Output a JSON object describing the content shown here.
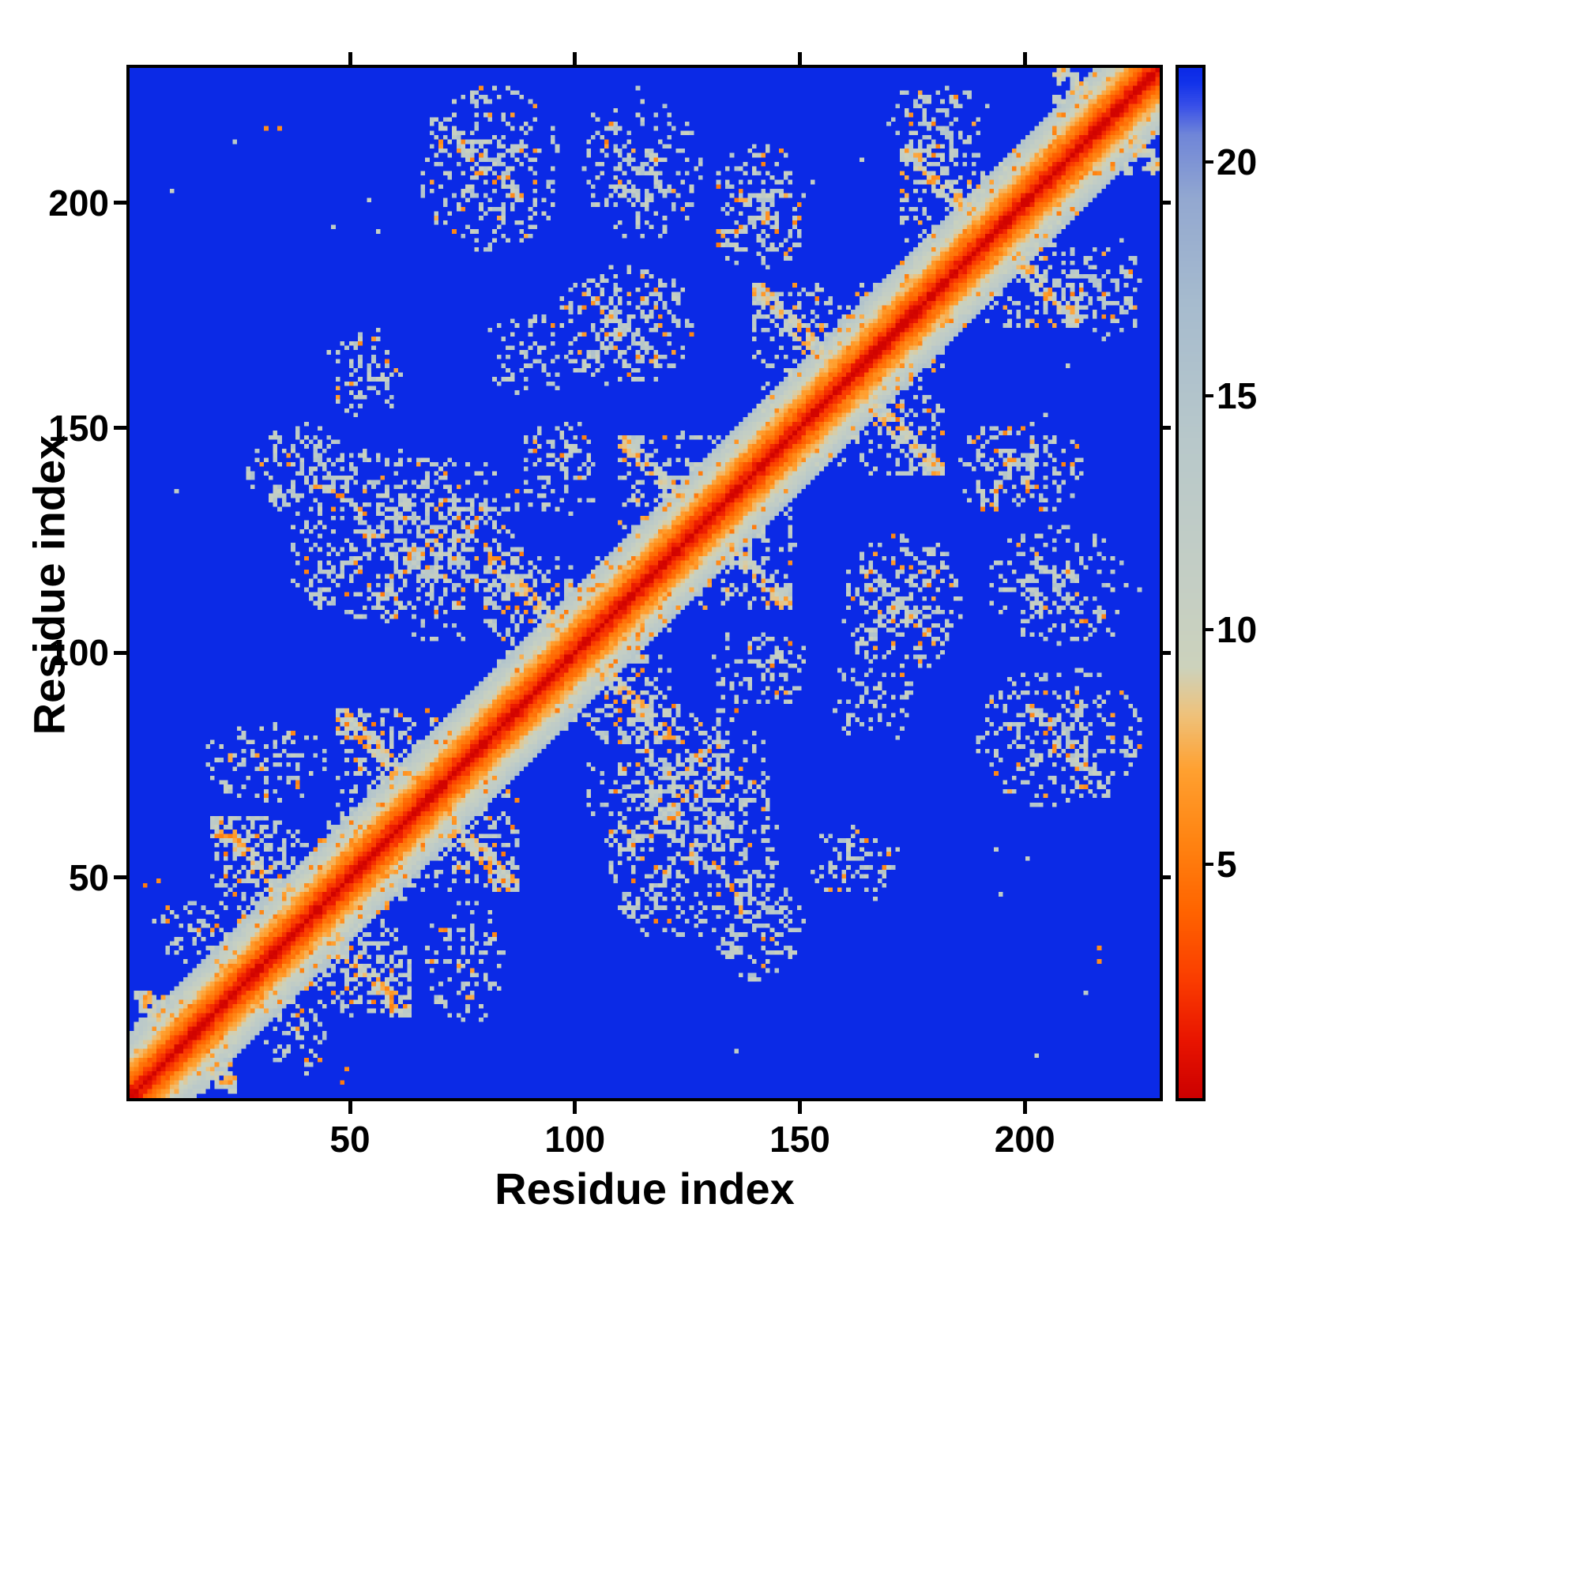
{
  "figure": {
    "background": "#ffffff",
    "frame_color": "#000000"
  },
  "chart_data": {
    "type": "heatmap",
    "title": "",
    "xlabel": "Residue index",
    "ylabel": "Residue index",
    "x_range": [
      1,
      230
    ],
    "y_range": [
      1,
      230
    ],
    "x_ticks": [
      50,
      100,
      150,
      200
    ],
    "y_ticks": [
      50,
      100,
      150,
      200
    ],
    "grid": false,
    "legend_position": "none",
    "colorbar": {
      "position": "right",
      "ticks": [
        5,
        10,
        15,
        20
      ],
      "vmin": 0,
      "vmax": 22
    },
    "colormap": {
      "description": "red (0) -> orange (~5-8) -> pale sage gray (~10-16) -> gray blue (~18-20) -> vivid blue (>21, background / no contact)",
      "background_blue": "#0b2ae6",
      "pale_contact": "#c4cec4",
      "orange_contact": "#ff8c1a",
      "diagonal_red": "#e81400",
      "stops": [
        [
          0,
          "#cc0000"
        ],
        [
          1.2,
          "#e81400"
        ],
        [
          2.5,
          "#fa3c00"
        ],
        [
          4,
          "#ff6400"
        ],
        [
          5.5,
          "#ff8412"
        ],
        [
          7,
          "#ffa030"
        ],
        [
          8.2,
          "#eec27c"
        ],
        [
          9.2,
          "#ccd2bc"
        ],
        [
          11,
          "#c4cec4"
        ],
        [
          14,
          "#b8c8ca"
        ],
        [
          17,
          "#a6bbce"
        ],
        [
          19.2,
          "#93a8d0"
        ],
        [
          20.6,
          "#6f85d8"
        ],
        [
          21.2,
          "#3950e8"
        ],
        [
          21.7,
          "#1232ea"
        ],
        [
          22,
          "#0b2ae6"
        ]
      ]
    },
    "matrix": {
      "description": "Symmetric 230x230 residue-residue distance map: red main diagonal with orange flanks and a pale near-diagonal band; X-shaped pale/orange contact domains along the diagonal; sparse pale off-diagonal contact clusters; blue elsewhere (distance beyond colour scale).",
      "size": 230,
      "seed": 987654321,
      "band_width": 14,
      "band_slope": 1.05,
      "domains": [
        [
          12,
          11,
          0.3,
          0.08
        ],
        [
          40,
          22,
          0.34,
          0.1
        ],
        [
          66,
          20,
          0.34,
          0.1
        ],
        [
          100,
          20,
          0.3,
          0.08
        ],
        [
          128,
          19,
          0.3,
          0.08
        ],
        [
          160,
          21,
          0.32,
          0.09
        ],
        [
          192,
          20,
          0.32,
          0.09
        ],
        [
          218,
          12,
          0.34,
          0.1
        ]
      ],
      "clusters": [
        [
          38,
          140,
          13,
          11,
          0.26,
          0.1
        ],
        [
          70,
          122,
          18,
          22,
          0.3,
          0.12
        ],
        [
          110,
          172,
          16,
          14,
          0.32,
          0.12
        ],
        [
          80,
          207,
          16,
          19,
          0.28,
          0.1
        ],
        [
          140,
          198,
          11,
          15,
          0.3,
          0.12
        ],
        [
          52,
          162,
          9,
          12,
          0.18,
          0.08
        ],
        [
          55,
          125,
          22,
          20,
          0.26,
          0.1
        ],
        [
          114,
          207,
          14,
          16,
          0.22,
          0.07
        ],
        [
          30,
          75,
          14,
          10,
          0.2,
          0.08
        ],
        [
          12,
          36,
          8,
          8,
          0.16,
          0.06
        ],
        [
          88,
          165,
          10,
          11,
          0.14,
          0.06
        ],
        [
          95,
          140,
          10,
          12,
          0.18,
          0.07
        ],
        [
          180,
          218,
          12,
          9,
          0.25,
          0.1
        ]
      ],
      "dots": [
        [
          30,
          216,
          6
        ],
        [
          33,
          216,
          6
        ],
        [
          48,
          6,
          6
        ],
        [
          3,
          47,
          5
        ]
      ],
      "dust": 0.0007
    }
  }
}
